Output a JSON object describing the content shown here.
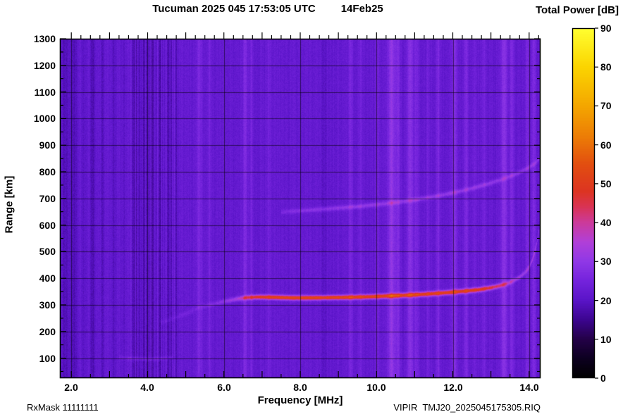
{
  "header": {
    "title": "Tucuman 2025 045 17:53:05 UTC",
    "date": "14Feb25",
    "colorbar_title": "Total Power [dB]"
  },
  "footer": {
    "rx_mask": "RxMask 11111111",
    "file_label": "VIPIR  TMJ20_2025045175305.RIQ"
  },
  "chart_data": {
    "type": "heatmap",
    "title": "Tucuman 2025 045 17:53:05 UTC   14Feb25",
    "xlabel": "Frequency [MHz]",
    "ylabel": "Range [km]",
    "colorbar_label": "Total Power [dB]",
    "units": "dB",
    "x_range": [
      1.7,
      14.3
    ],
    "y_range": [
      25,
      1300
    ],
    "colorbar_range": [
      0,
      90
    ],
    "grid": true,
    "x_major_ticks": [
      2,
      4,
      6,
      8,
      10,
      12,
      14
    ],
    "x_tick_labels": [
      "2.0",
      "4.0",
      "6.0",
      "8.0",
      "10.0",
      "12.0",
      "14.0"
    ],
    "x_minor_step": 0.5,
    "y_tick_values": [
      100,
      200,
      300,
      400,
      500,
      600,
      700,
      800,
      900,
      1000,
      1100,
      1200,
      1300
    ],
    "y_tick_labels": [
      "100",
      "200",
      "300",
      "400",
      "500",
      "600",
      "700",
      "800",
      "900",
      "1000",
      "1100",
      "1200",
      "1300"
    ],
    "y_minor_step": 50,
    "colorbar_ticks": [
      0,
      10,
      20,
      30,
      40,
      50,
      60,
      70,
      80,
      90
    ],
    "colorbar_tick_labels": [
      "0",
      "10",
      "20",
      "30",
      "40",
      "50",
      "60",
      "70",
      "80",
      "90"
    ],
    "background_db": 22,
    "noise": {
      "pixel": 1.5,
      "column": 1.0
    },
    "noisy_band": {
      "f0": 3.55,
      "f1": 4.8,
      "column_amp": 4.5,
      "offset": -1.5
    },
    "colormap": [
      [
        0,
        "#000000"
      ],
      [
        5,
        "#0d0020"
      ],
      [
        10,
        "#240148"
      ],
      [
        15,
        "#3c0590"
      ],
      [
        20,
        "#5a14c8"
      ],
      [
        25,
        "#7423dc"
      ],
      [
        30,
        "#9038e6"
      ],
      [
        35,
        "#b13fd8"
      ],
      [
        40,
        "#cc3a9a"
      ],
      [
        44,
        "#d93355"
      ],
      [
        48,
        "#dc3422"
      ],
      [
        55,
        "#e24e10"
      ],
      [
        62,
        "#ec7c06"
      ],
      [
        70,
        "#f4a600"
      ],
      [
        80,
        "#fbd400"
      ],
      [
        90,
        "#ffff30"
      ]
    ],
    "rfi_stripes": [
      {
        "f": 1.85,
        "w": 0.1,
        "d": -3
      },
      {
        "f": 2.08,
        "w": 0.05,
        "d": -4
      },
      {
        "f": 2.33,
        "w": 0.04,
        "d": -2
      },
      {
        "f": 2.56,
        "w": 0.04,
        "d": -4
      },
      {
        "f": 2.82,
        "w": 0.03,
        "d": -3
      },
      {
        "f": 3.1,
        "w": 0.04,
        "d": -2.5
      },
      {
        "f": 3.38,
        "w": 0.03,
        "d": -2
      },
      {
        "f": 5.35,
        "w": 0.05,
        "d": 4
      },
      {
        "f": 5.62,
        "w": 0.03,
        "d": 3
      },
      {
        "f": 6.55,
        "w": 0.04,
        "d": 5
      },
      {
        "f": 6.72,
        "w": 0.03,
        "d": 3
      },
      {
        "f": 7.18,
        "w": 0.04,
        "d": 3
      },
      {
        "f": 8.62,
        "w": 0.05,
        "d": -2
      },
      {
        "f": 9.32,
        "w": 0.04,
        "d": 4
      },
      {
        "f": 9.58,
        "w": 0.03,
        "d": 3
      },
      {
        "f": 10.02,
        "w": 0.03,
        "d": 3
      },
      {
        "f": 10.4,
        "w": 0.07,
        "d": 8
      },
      {
        "f": 10.57,
        "w": 0.04,
        "d": 5
      },
      {
        "f": 10.88,
        "w": 0.06,
        "d": 7
      },
      {
        "f": 11.05,
        "w": 0.04,
        "d": 4
      },
      {
        "f": 11.35,
        "w": 0.03,
        "d": 3
      },
      {
        "f": 11.62,
        "w": 0.04,
        "d": 4
      },
      {
        "f": 12.05,
        "w": 0.05,
        "d": 6
      },
      {
        "f": 12.35,
        "w": 0.04,
        "d": 5
      },
      {
        "f": 12.58,
        "w": 0.03,
        "d": 3
      },
      {
        "f": 12.82,
        "w": 0.03,
        "d": 3
      },
      {
        "f": 13.35,
        "w": 0.06,
        "d": 7
      },
      {
        "f": 13.55,
        "w": 0.04,
        "d": 5
      },
      {
        "f": 13.95,
        "w": 0.04,
        "d": 4
      },
      {
        "f": 14.12,
        "w": 0.04,
        "d": 5
      }
    ],
    "traces": [
      {
        "name": "f-layer-echo-main",
        "sigma_km": 6,
        "points": [
          [
            5.15,
            283,
            2
          ],
          [
            5.6,
            300,
            4
          ],
          [
            6.0,
            314,
            7
          ],
          [
            6.35,
            324,
            12
          ],
          [
            6.6,
            329,
            22
          ],
          [
            6.9,
            331,
            28
          ],
          [
            7.3,
            330,
            31
          ],
          [
            7.8,
            328,
            32
          ],
          [
            8.3,
            328,
            32
          ],
          [
            8.8,
            329,
            32
          ],
          [
            9.3,
            330,
            32
          ],
          [
            9.8,
            332,
            31
          ],
          [
            10.3,
            335,
            31
          ],
          [
            10.8,
            338,
            31
          ],
          [
            11.3,
            342,
            30
          ],
          [
            11.8,
            347,
            30
          ],
          [
            12.3,
            353,
            29
          ],
          [
            12.7,
            359,
            28
          ],
          [
            13.0,
            366,
            25
          ],
          [
            13.25,
            374,
            20
          ],
          [
            13.45,
            383,
            14
          ],
          [
            13.6,
            393,
            11
          ],
          [
            13.75,
            405,
            10
          ],
          [
            13.9,
            424,
            9
          ],
          [
            14.0,
            443,
            9
          ],
          [
            14.08,
            468,
            8
          ],
          [
            14.14,
            495,
            8
          ],
          [
            14.19,
            525,
            8
          ],
          [
            14.23,
            556,
            8
          ],
          [
            14.27,
            592,
            8
          ]
        ]
      },
      {
        "name": "f-layer-echo-second-hop",
        "sigma_km": 6,
        "points": [
          [
            7.5,
            650,
            4
          ],
          [
            8.0,
            655,
            6
          ],
          [
            8.5,
            660,
            7
          ],
          [
            9.0,
            665,
            8
          ],
          [
            9.5,
            671,
            8
          ],
          [
            10.0,
            678,
            8
          ],
          [
            10.5,
            686,
            8
          ],
          [
            11.0,
            696,
            8
          ],
          [
            11.5,
            708,
            8
          ],
          [
            12.0,
            722,
            8
          ],
          [
            12.5,
            739,
            8
          ],
          [
            12.9,
            755,
            8
          ],
          [
            13.3,
            773,
            7
          ],
          [
            13.7,
            795,
            7
          ],
          [
            14.0,
            818,
            7
          ],
          [
            14.15,
            833,
            7
          ],
          [
            14.27,
            850,
            6
          ]
        ]
      },
      {
        "name": "e-layer-faint-echo",
        "sigma_km": 5,
        "points": [
          [
            3.25,
            104,
            3
          ],
          [
            3.6,
            100,
            5
          ],
          [
            4.0,
            98,
            5
          ],
          [
            4.35,
            100,
            4
          ],
          [
            4.65,
            104,
            3
          ]
        ]
      },
      {
        "name": "leading-edge-faint",
        "sigma_km": 6,
        "points": [
          [
            4.35,
            235,
            2
          ],
          [
            4.8,
            258,
            2.5
          ],
          [
            5.2,
            280,
            3
          ]
        ]
      }
    ]
  }
}
